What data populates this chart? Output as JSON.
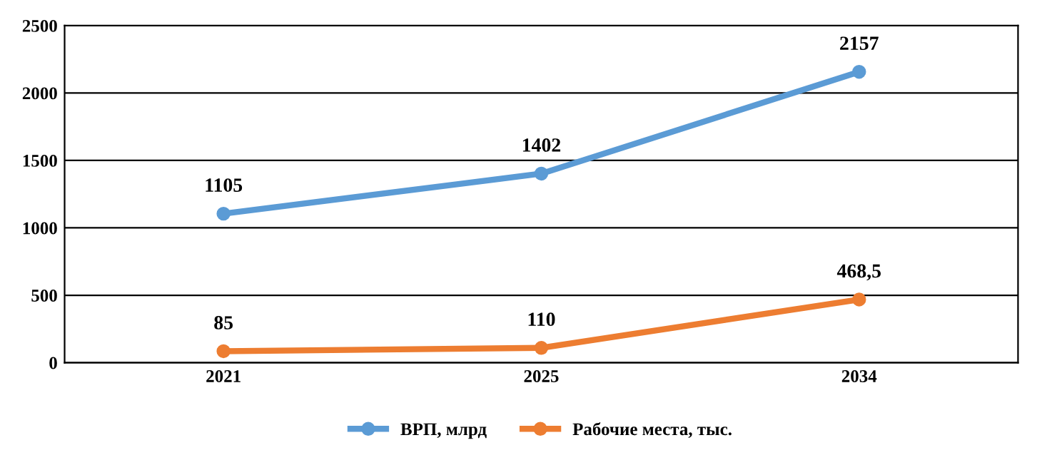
{
  "chart_data": {
    "type": "line",
    "categories": [
      "2021",
      "2025",
      "2034"
    ],
    "series": [
      {
        "name": "ВРП, млрд",
        "color": "#5b9bd5",
        "values": [
          1105,
          1402,
          2157
        ],
        "value_labels": [
          "1105",
          "1402",
          "2157"
        ]
      },
      {
        "name": "Рабочие места, тыс.",
        "color": "#ed7d31",
        "values": [
          85,
          110,
          468.5
        ],
        "value_labels": [
          "85",
          "110",
          "468,5"
        ]
      }
    ],
    "ylim": [
      0,
      2500
    ],
    "yticks": [
      0,
      500,
      1000,
      1500,
      2000,
      2500
    ],
    "grid": "y",
    "legend": "bottom",
    "marker": "circle",
    "line_style": "solid"
  }
}
